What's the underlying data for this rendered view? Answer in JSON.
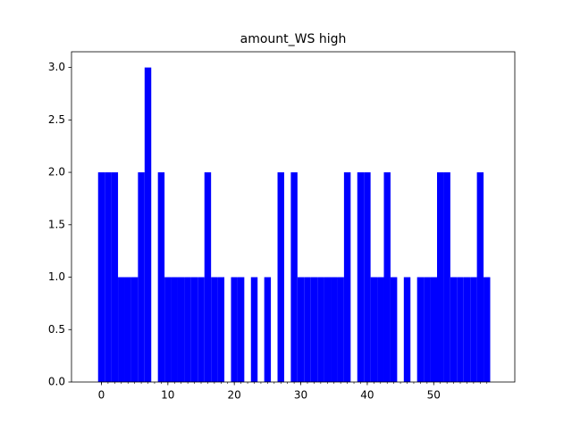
{
  "chart_data": {
    "type": "bar",
    "title": "amount_WS high",
    "x": [
      0,
      1,
      2,
      3,
      4,
      5,
      6,
      7,
      8,
      9,
      10,
      11,
      12,
      13,
      14,
      15,
      16,
      17,
      18,
      19,
      20,
      21,
      22,
      23,
      24,
      25,
      26,
      27,
      28,
      29,
      30,
      31,
      32,
      33,
      34,
      35,
      36,
      37,
      38,
      39,
      40,
      41,
      42,
      43,
      44,
      45,
      46,
      47,
      48,
      49,
      50,
      51,
      52,
      53,
      54,
      55,
      56,
      57,
      58
    ],
    "values": [
      2,
      2,
      2,
      1,
      1,
      1,
      2,
      3,
      0,
      2,
      1,
      1,
      1,
      1,
      1,
      1,
      2,
      1,
      1,
      0,
      1,
      1,
      0,
      1,
      0,
      1,
      0,
      2,
      0,
      2,
      1,
      1,
      1,
      1,
      1,
      1,
      1,
      2,
      0,
      2,
      2,
      1,
      1,
      2,
      1,
      0,
      1,
      0,
      1,
      1,
      1,
      2,
      2,
      1,
      1,
      1,
      1,
      2,
      1
    ],
    "color": "#0000ff",
    "xlim": [
      -4.5,
      62.2
    ],
    "xticks": [
      0,
      10,
      20,
      30,
      40,
      50
    ],
    "ylim": [
      0,
      3.15
    ],
    "yticks": [
      {
        "value": 0,
        "label": "0.0"
      },
      {
        "value": 0.5,
        "label": "0.5"
      },
      {
        "value": 1,
        "label": "1.0"
      },
      {
        "value": 1.5,
        "label": "1.5"
      },
      {
        "value": 2,
        "label": "2.0"
      },
      {
        "value": 2.5,
        "label": "2.5"
      },
      {
        "value": 3,
        "label": "3.0"
      }
    ]
  }
}
